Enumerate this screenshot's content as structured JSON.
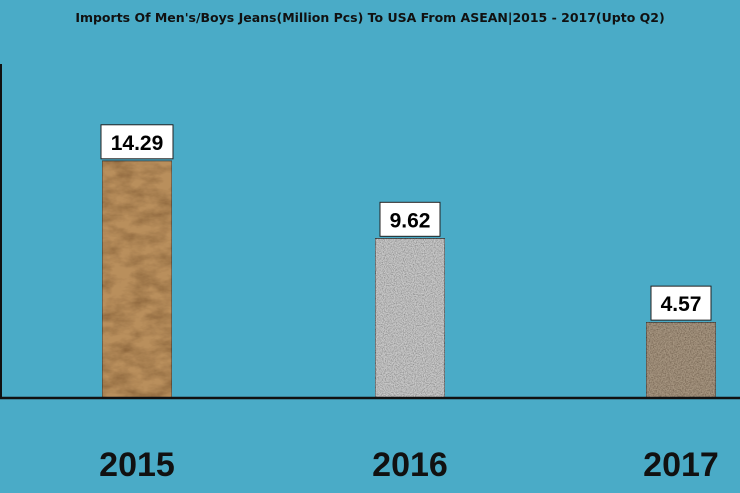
{
  "chart_data": {
    "type": "bar",
    "title": "Imports Of Men's/Boys Jeans(Million Pcs) To USA From ASEAN|2015 - 2017(Upto Q2)",
    "categories": [
      "2015",
      "2016",
      "2017"
    ],
    "values": [
      14.29,
      9.62,
      4.57
    ],
    "value_labels": [
      "14.29",
      "9.62",
      "4.57"
    ],
    "xlabel": "",
    "ylabel": "",
    "ylim": [
      0,
      20
    ],
    "grid": false,
    "legend": "none",
    "colors": {
      "plot_background": "#4aabc7",
      "bar_2015": "#b98f5c",
      "bar_2016": "#c9c9c9",
      "bar_2017": "#a69580",
      "label_box": "#ffffff",
      "axis": "#111111"
    }
  }
}
